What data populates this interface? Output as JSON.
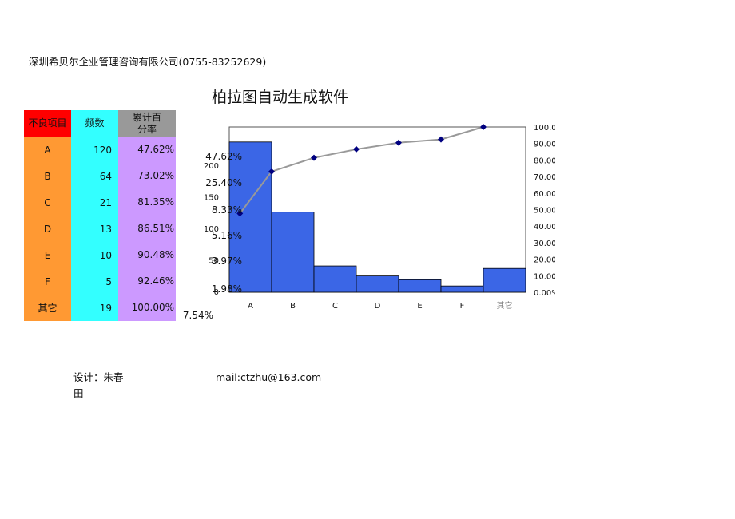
{
  "company": "深圳希贝尔企业管理咨询有限公司(0755-83252629)",
  "title": "柏拉图自动生成软件",
  "table": {
    "headers": [
      "不良项目",
      "频数",
      "累计百分率"
    ],
    "rows": [
      {
        "item": "A",
        "freq": "120",
        "cum": "47.62%"
      },
      {
        "item": "B",
        "freq": "64",
        "cum": "73.02%"
      },
      {
        "item": "C",
        "freq": "21",
        "cum": "81.35%"
      },
      {
        "item": "D",
        "freq": "13",
        "cum": "86.51%"
      },
      {
        "item": "E",
        "freq": "10",
        "cum": "90.48%"
      },
      {
        "item": "F",
        "freq": "5",
        "cum": "92.46%"
      },
      {
        "item": "其它",
        "freq": "19",
        "cum": "100.00%"
      }
    ]
  },
  "footer": {
    "designer": "设计：朱春田",
    "mail": "mail:ctzhu@163.com"
  },
  "chart_data": {
    "type": "bar",
    "categories": [
      "A",
      "B",
      "C",
      "D",
      "E",
      "F",
      "其它"
    ],
    "series": [
      {
        "values": [
          120,
          64,
          21,
          13,
          10,
          5,
          19
        ]
      },
      {
        "values": [
          47.62,
          73.02,
          81.35,
          86.51,
          90.48,
          92.46,
          100.0
        ]
      }
    ],
    "bar_labels": [
      "47.62%",
      "25.40%",
      "8.33%",
      "5.16%",
      "3.97%",
      "1.98%",
      "7.54%"
    ],
    "y_left_ticks": [
      "0",
      "50",
      "100",
      "150",
      "200"
    ],
    "y_left_range": [
      0,
      200
    ],
    "y_right_ticks": [
      "0.00%",
      "10.00%",
      "20.00%",
      "30.00%",
      "40.00%",
      "50.00%",
      "60.00%",
      "70.00%",
      "80.00%",
      "90.00%",
      "100.00%"
    ],
    "y_right_range": [
      0,
      100
    ],
    "colors": {
      "bar": "#3b66e6",
      "bar_edge": "#000000",
      "line": "#999999",
      "marker": "#000080"
    },
    "grid": false
  }
}
